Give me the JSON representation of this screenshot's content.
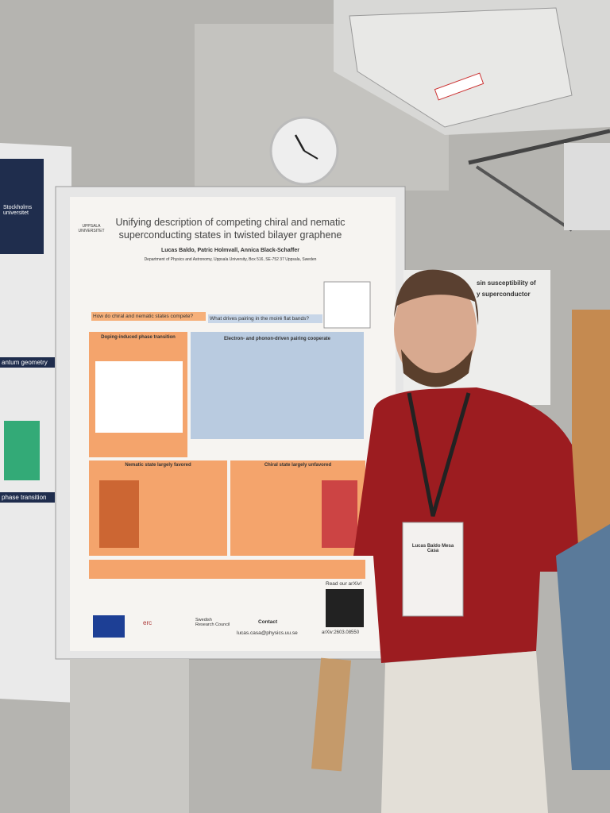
{
  "poster": {
    "institution": "UPPSALA UNIVERSITET",
    "title": "Unifying description of competing chiral and nematic superconducting states in twisted bilayer graphene",
    "authors": "Lucas Baldo, Patric Holmvall, Annica Black-Schaffer",
    "affiliation": "Department of Physics and Astronomy, Uppsala University, Box 516, SE-752 37 Uppsala, Sweden",
    "questions": [
      "How do chiral and nematic states compete?",
      "What drives pairing in the moiré flat bands?"
    ],
    "sections": [
      "Doping-induced phase transition",
      "Electron- and phonon-driven pairing cooperate",
      "Nematic state largely favored",
      "Chiral state largely unfavored"
    ],
    "read": "Read our arXiv!",
    "contact": "Contact",
    "email": "lucas.casa@physics.uu.se",
    "arxiv": "arXiv:2603.08550",
    "funders": [
      "erc",
      "Swedish Research Council"
    ]
  },
  "badge": {
    "name": "Lucas Baldo Mesa Casa"
  },
  "side_poster": {
    "title": "Stockholms universitet",
    "headings": [
      "antum geometry",
      "phase transition"
    ]
  },
  "right_poster": {
    "title": "sin susceptibility of",
    "subtitle": "y superconductor"
  }
}
